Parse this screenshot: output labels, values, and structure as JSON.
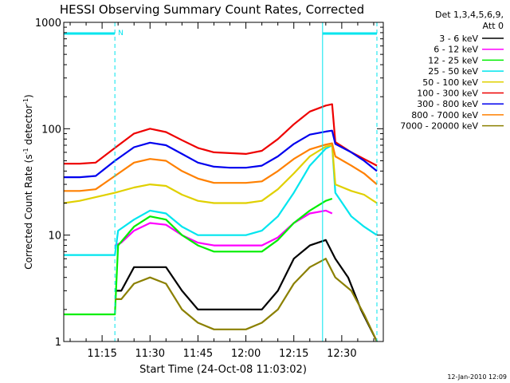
{
  "chart_data": {
    "type": "line",
    "title": "HESSI Observing Summary Count Rates, Corrected",
    "ylabel_main": "Corrected Count Rate (s",
    "ylabel_sup1": "-1",
    "ylabel_mid": " detector",
    "ylabel_sup2": "-1",
    "ylabel_end": ")",
    "xlabel": "Start Time (24-Oct-08 11:03:02)",
    "date_stamp": "12-Jan-2010 12:09",
    "y_scale": "log",
    "ylim": [
      1,
      1000
    ],
    "xlim_minutes": [
      "11:03",
      "12:43"
    ],
    "y_tick_labels": [
      {
        "value": 1,
        "label": "1"
      },
      {
        "value": 10,
        "label": "10"
      },
      {
        "value": 100,
        "label": "100"
      },
      {
        "value": 1000,
        "label": "1000"
      }
    ],
    "x_tick_labels": [
      {
        "value": "11:15",
        "label": "11:15"
      },
      {
        "value": "11:30",
        "label": "11:30"
      },
      {
        "value": "11:45",
        "label": "11:45"
      },
      {
        "value": "12:00",
        "label": "12:00"
      },
      {
        "value": "12:15",
        "label": "12:15"
      },
      {
        "value": "12:30",
        "label": "12:30"
      }
    ],
    "legend": {
      "title_line1": "Det 1,3,4,5,6,9,",
      "title_line2": "Att 0",
      "placement": "right"
    },
    "annotations": {
      "night_label": "N",
      "night_intervals": [
        [
          "11:03",
          "11:19"
        ],
        [
          "12:24",
          "12:41"
        ]
      ],
      "vertical_lines": [
        "11:19",
        "12:24",
        "12:41"
      ],
      "night_bar_color": "#00e5ee"
    },
    "series": [
      {
        "name": "3 - 6 keV",
        "color": "#000000",
        "points": [
          [
            "11:19",
            3
          ],
          [
            "11:21",
            3
          ],
          [
            "11:25",
            5
          ],
          [
            "11:30",
            5
          ],
          [
            "11:35",
            5
          ],
          [
            "11:40",
            3
          ],
          [
            "11:45",
            2
          ],
          [
            "11:50",
            2
          ],
          [
            "11:55",
            2
          ],
          [
            "12:00",
            2
          ],
          [
            "12:05",
            2
          ],
          [
            "12:10",
            3
          ],
          [
            "12:15",
            6
          ],
          [
            "12:20",
            8
          ],
          [
            "12:25",
            9
          ],
          [
            "12:28",
            6
          ],
          [
            "12:32",
            4
          ],
          [
            "12:36",
            2
          ],
          [
            "12:41",
            1
          ]
        ]
      },
      {
        "name": "6 - 12 keV",
        "color": "#ff00ff",
        "points": [
          [
            "11:19",
            8
          ],
          [
            "11:21",
            8.5
          ],
          [
            "11:25",
            11
          ],
          [
            "11:30",
            13
          ],
          [
            "11:35",
            12.5
          ],
          [
            "11:40",
            10
          ],
          [
            "11:45",
            8.5
          ],
          [
            "11:50",
            8
          ],
          [
            "11:55",
            8
          ],
          [
            "12:00",
            8
          ],
          [
            "12:05",
            8
          ],
          [
            "12:10",
            9.5
          ],
          [
            "12:15",
            13
          ],
          [
            "12:20",
            16
          ],
          [
            "12:25",
            17
          ],
          [
            "12:27",
            16
          ]
        ]
      },
      {
        "name": "12 - 25 keV",
        "color": "#00ee00",
        "points": [
          [
            "11:03",
            1.8
          ],
          [
            "11:19",
            1.8
          ],
          [
            "11:20",
            8
          ],
          [
            "11:25",
            12
          ],
          [
            "11:30",
            15
          ],
          [
            "11:35",
            14
          ],
          [
            "11:40",
            10
          ],
          [
            "11:45",
            8
          ],
          [
            "11:50",
            7
          ],
          [
            "11:55",
            7
          ],
          [
            "12:00",
            7
          ],
          [
            "12:05",
            7
          ],
          [
            "12:10",
            9
          ],
          [
            "12:15",
            13
          ],
          [
            "12:20",
            17
          ],
          [
            "12:25",
            21
          ],
          [
            "12:27",
            22
          ]
        ]
      },
      {
        "name": "25 - 50 keV",
        "color": "#00e5ee",
        "points": [
          [
            "11:03",
            6.5
          ],
          [
            "11:19",
            6.5
          ],
          [
            "11:20",
            11
          ],
          [
            "11:25",
            14
          ],
          [
            "11:30",
            17
          ],
          [
            "11:35",
            16
          ],
          [
            "11:40",
            12
          ],
          [
            "11:45",
            10
          ],
          [
            "11:50",
            10
          ],
          [
            "11:55",
            10
          ],
          [
            "12:00",
            10
          ],
          [
            "12:05",
            11
          ],
          [
            "12:10",
            15
          ],
          [
            "12:15",
            25
          ],
          [
            "12:20",
            45
          ],
          [
            "12:25",
            65
          ],
          [
            "12:27",
            70
          ],
          [
            "12:28",
            25
          ],
          [
            "12:33",
            15
          ],
          [
            "12:37",
            12
          ],
          [
            "12:41",
            10
          ]
        ]
      },
      {
        "name": "50 - 100 keV",
        "color": "#e0d000",
        "points": [
          [
            "11:03",
            20
          ],
          [
            "11:08",
            21
          ],
          [
            "11:19",
            25
          ],
          [
            "11:25",
            28
          ],
          [
            "11:30",
            30
          ],
          [
            "11:35",
            29
          ],
          [
            "11:40",
            24
          ],
          [
            "11:45",
            21
          ],
          [
            "11:50",
            20
          ],
          [
            "11:55",
            20
          ],
          [
            "12:00",
            20
          ],
          [
            "12:05",
            21
          ],
          [
            "12:10",
            27
          ],
          [
            "12:15",
            38
          ],
          [
            "12:20",
            55
          ],
          [
            "12:25",
            68
          ],
          [
            "12:27",
            70
          ],
          [
            "12:28",
            30
          ],
          [
            "12:33",
            26
          ],
          [
            "12:37",
            24
          ],
          [
            "12:41",
            20
          ]
        ]
      },
      {
        "name": "100 - 300 keV",
        "color": "#ee0000",
        "points": [
          [
            "11:03",
            47
          ],
          [
            "11:08",
            47
          ],
          [
            "11:13",
            48
          ],
          [
            "11:19",
            66
          ],
          [
            "11:25",
            90
          ],
          [
            "11:30",
            100
          ],
          [
            "11:35",
            93
          ],
          [
            "11:40",
            78
          ],
          [
            "11:45",
            66
          ],
          [
            "11:50",
            60
          ],
          [
            "11:55",
            59
          ],
          [
            "12:00",
            58
          ],
          [
            "12:05",
            62
          ],
          [
            "12:10",
            80
          ],
          [
            "12:15",
            110
          ],
          [
            "12:20",
            145
          ],
          [
            "12:25",
            165
          ],
          [
            "12:27",
            170
          ],
          [
            "12:28",
            75
          ],
          [
            "12:33",
            60
          ],
          [
            "12:37",
            52
          ],
          [
            "12:41",
            45
          ]
        ]
      },
      {
        "name": "300 - 800 keV",
        "color": "#0000ee",
        "points": [
          [
            "11:03",
            35
          ],
          [
            "11:08",
            35
          ],
          [
            "11:13",
            36
          ],
          [
            "11:19",
            50
          ],
          [
            "11:25",
            67
          ],
          [
            "11:30",
            74
          ],
          [
            "11:35",
            70
          ],
          [
            "11:40",
            58
          ],
          [
            "11:45",
            48
          ],
          [
            "11:50",
            44
          ],
          [
            "11:55",
            43
          ],
          [
            "12:00",
            43
          ],
          [
            "12:05",
            45
          ],
          [
            "12:10",
            55
          ],
          [
            "12:15",
            72
          ],
          [
            "12:20",
            88
          ],
          [
            "12:25",
            94
          ],
          [
            "12:27",
            96
          ],
          [
            "12:28",
            72
          ],
          [
            "12:33",
            60
          ],
          [
            "12:37",
            50
          ],
          [
            "12:41",
            40
          ]
        ]
      },
      {
        "name": "800 - 7000 keV",
        "color": "#ff8000",
        "points": [
          [
            "11:03",
            26
          ],
          [
            "11:08",
            26
          ],
          [
            "11:13",
            27
          ],
          [
            "11:19",
            36
          ],
          [
            "11:25",
            48
          ],
          [
            "11:30",
            52
          ],
          [
            "11:35",
            50
          ],
          [
            "11:40",
            40
          ],
          [
            "11:45",
            34
          ],
          [
            "11:50",
            31
          ],
          [
            "11:55",
            31
          ],
          [
            "12:00",
            31
          ],
          [
            "12:05",
            32
          ],
          [
            "12:10",
            40
          ],
          [
            "12:15",
            52
          ],
          [
            "12:20",
            64
          ],
          [
            "12:25",
            71
          ],
          [
            "12:27",
            73
          ],
          [
            "12:28",
            55
          ],
          [
            "12:33",
            45
          ],
          [
            "12:37",
            38
          ],
          [
            "12:41",
            30
          ]
        ]
      },
      {
        "name": "7000 - 20000 keV",
        "color": "#8b8000",
        "points": [
          [
            "11:19",
            2.5
          ],
          [
            "11:21",
            2.5
          ],
          [
            "11:25",
            3.5
          ],
          [
            "11:30",
            4
          ],
          [
            "11:35",
            3.5
          ],
          [
            "11:40",
            2
          ],
          [
            "11:45",
            1.5
          ],
          [
            "11:50",
            1.3
          ],
          [
            "11:55",
            1.3
          ],
          [
            "12:00",
            1.3
          ],
          [
            "12:05",
            1.5
          ],
          [
            "12:10",
            2
          ],
          [
            "12:15",
            3.5
          ],
          [
            "12:20",
            5
          ],
          [
            "12:25",
            6
          ],
          [
            "12:28",
            4
          ],
          [
            "12:33",
            3
          ],
          [
            "12:37",
            1.8
          ],
          [
            "12:41",
            1
          ]
        ]
      }
    ]
  }
}
